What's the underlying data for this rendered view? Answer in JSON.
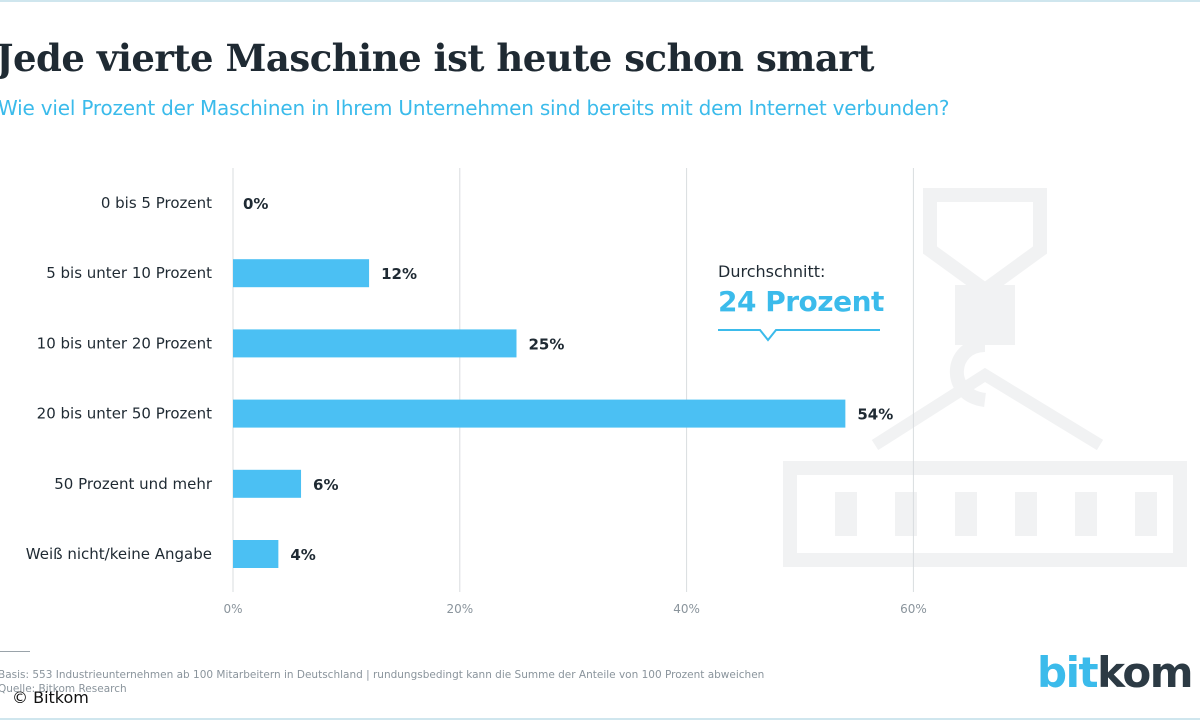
{
  "title": "Jede vierte Maschine ist heute schon smart",
  "subtitle": "Wie viel Prozent der Maschinen in Ihrem Unternehmen sind bereits mit dem Internet verbunden?",
  "average": {
    "label": "Durchschnitt:",
    "value": "24 Prozent"
  },
  "footnote": "Basis: 553 Industrieunternehmen ab 100 Mitarbeitern in Deutschland | rundungsbedingt kann die Summe der Anteile von 100 Prozent abweichen",
  "source": "Quelle: Bitkom Research",
  "copyright": "© Bitkom",
  "logo": {
    "part1": "bit",
    "part2": "kom"
  },
  "colors": {
    "bar": "#4bc0f3",
    "accent": "#3bbbeb",
    "text": "#1f2a33",
    "grid": "#d9dcdf",
    "axis": "#8a949c",
    "logo_dark": "#2c3a44",
    "watermark": "#f1f2f3"
  },
  "chart_data": {
    "type": "bar",
    "orientation": "horizontal",
    "title": "Jede vierte Maschine ist heute schon smart",
    "subtitle": "Wie viel Prozent der Maschinen in Ihrem Unternehmen sind bereits mit dem Internet verbunden?",
    "categories": [
      "0 bis 5 Prozent",
      "5 bis unter 10 Prozent",
      "10 bis unter 20 Prozent",
      "20 bis unter 50 Prozent",
      "50 Prozent und mehr",
      "Weiß nicht/keine Angabe"
    ],
    "values": [
      0,
      12,
      25,
      54,
      6,
      4
    ],
    "value_labels": [
      "0%",
      "12%",
      "25%",
      "54%",
      "6%",
      "4%"
    ],
    "xlim": [
      0,
      60
    ],
    "xticks": [
      0,
      20,
      40,
      60
    ],
    "xtick_labels": [
      "0%",
      "20%",
      "40%",
      "60%"
    ],
    "grid": true,
    "annotation": "Durchschnitt: 24 Prozent"
  }
}
